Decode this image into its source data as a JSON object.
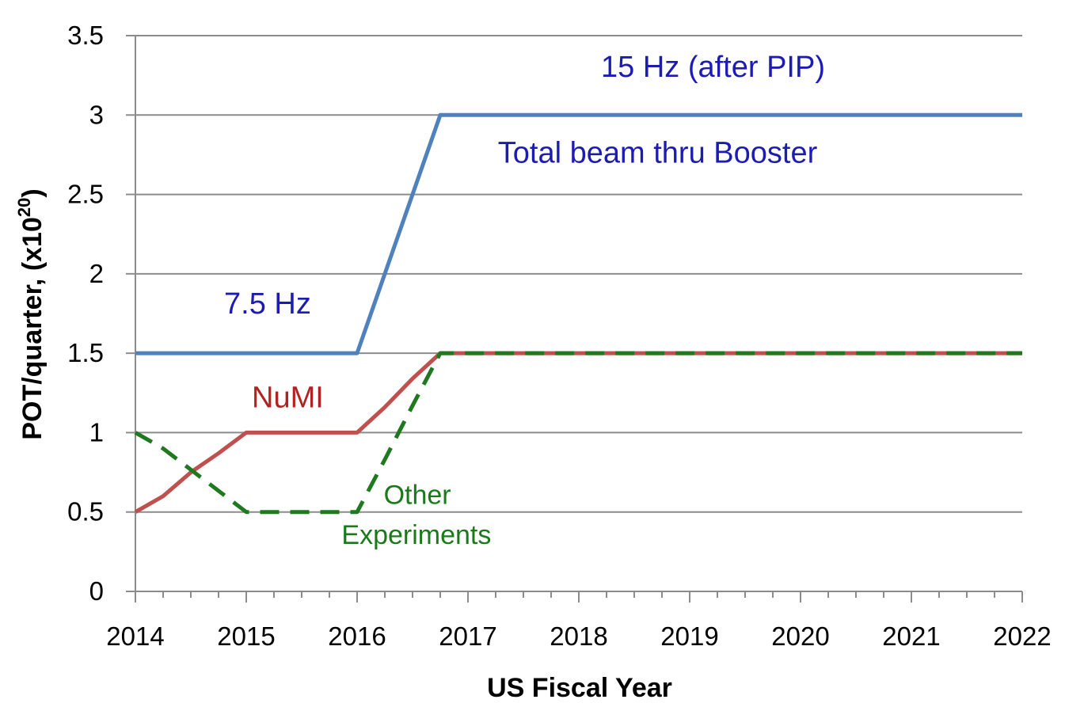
{
  "chart_data": {
    "type": "line",
    "xlabel": "US Fiscal Year",
    "ylabel": "POT/quarter, (x10",
    "ylabel_sup": "20",
    "ylabel_end": ")",
    "xlim": [
      2014,
      2022
    ],
    "ylim": [
      0,
      3.5
    ],
    "x_ticks": [
      "2014",
      "2015",
      "2016",
      "2017",
      "2018",
      "2019",
      "2020",
      "2021",
      "2022"
    ],
    "y_ticks": [
      "0",
      "0.5",
      "1",
      "1.5",
      "2",
      "2.5",
      "3",
      "3.5"
    ],
    "grid": "horizontal",
    "series": [
      {
        "name": "Total beam thru Booster",
        "color": "#4f81bd",
        "style": "solid",
        "x": [
          2014,
          2016,
          2016.75,
          2022
        ],
        "y": [
          1.5,
          1.5,
          3.0,
          3.0
        ]
      },
      {
        "name": "NuMI",
        "color": "#c0504d",
        "style": "solid",
        "x": [
          2014,
          2014.25,
          2014.5,
          2014.75,
          2015,
          2016,
          2016.25,
          2016.5,
          2016.75,
          2022
        ],
        "y": [
          0.5,
          0.6,
          0.75,
          0.87,
          1.0,
          1.0,
          1.16,
          1.34,
          1.5,
          1.5
        ]
      },
      {
        "name": "Other Experiments",
        "color": "#1f7a1f",
        "style": "dashed",
        "x": [
          2014,
          2014.25,
          2015,
          2016,
          2016.25,
          2016.5,
          2016.75,
          2022
        ],
        "y": [
          1.0,
          0.9,
          0.5,
          0.5,
          0.83,
          1.17,
          1.5,
          1.5
        ]
      }
    ],
    "annotations": [
      {
        "text": "15 Hz (after PIP)",
        "color": "#1c1cb4",
        "x": 2018.2,
        "y": 3.24
      },
      {
        "text": "Total beam thru Booster",
        "color": "#1c1cb4",
        "x": 2017.27,
        "y": 2.7
      },
      {
        "text": "7.5 Hz",
        "color": "#1c1cb4",
        "x": 2014.8,
        "y": 1.75
      },
      {
        "text": "NuMI",
        "color": "#b22222",
        "x": 2015.05,
        "y": 1.16
      },
      {
        "text": "Other",
        "color": "#1a7a1a",
        "x": 2016.24,
        "y": 0.55
      },
      {
        "text": "Experiments",
        "color": "#1a7a1a",
        "x": 2015.86,
        "y": 0.3
      }
    ]
  }
}
